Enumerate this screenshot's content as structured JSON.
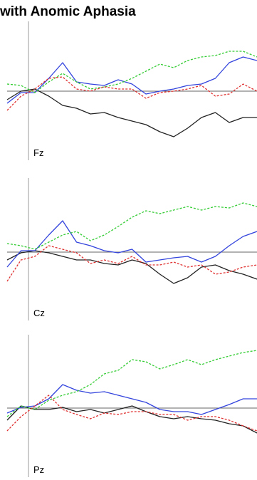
{
  "title": "with Anomic Aphasia",
  "chart_data": [
    {
      "type": "line",
      "label": "Fz",
      "ylim": [
        -97,
        98
      ],
      "series": [
        {
          "color": "#222222",
          "dashed": false,
          "values": [
            -12,
            0,
            3,
            -7,
            -20,
            -24,
            -32,
            -30,
            -37,
            -42,
            -47,
            -57,
            -64,
            -52,
            -37,
            -30,
            -44,
            -37,
            -37
          ]
        },
        {
          "color": "#3344dd",
          "dashed": false,
          "values": [
            -17,
            -2,
            -2,
            18,
            40,
            13,
            10,
            8,
            16,
            10,
            -4,
            0,
            3,
            8,
            10,
            18,
            40,
            48,
            43
          ]
        },
        {
          "color": "#33cc33",
          "dashed": true,
          "values": [
            10,
            8,
            -2,
            13,
            25,
            13,
            3,
            6,
            10,
            18,
            28,
            38,
            33,
            43,
            48,
            50,
            56,
            56,
            48
          ]
        },
        {
          "color": "#e03030",
          "dashed": true,
          "values": [
            -27,
            -7,
            3,
            18,
            20,
            3,
            0,
            6,
            3,
            3,
            -10,
            -2,
            0,
            3,
            8,
            -7,
            -4,
            10,
            0
          ]
        }
      ]
    },
    {
      "type": "line",
      "label": "Cz",
      "ylim": [
        -96,
        104
      ],
      "series": [
        {
          "color": "#222222",
          "dashed": false,
          "values": [
            -11,
            -1,
            2,
            -1,
            -6,
            -11,
            -11,
            -16,
            -18,
            -11,
            -16,
            -31,
            -44,
            -36,
            -21,
            -18,
            -26,
            -31,
            -38
          ]
        },
        {
          "color": "#3344dd",
          "dashed": false,
          "values": [
            -21,
            2,
            2,
            24,
            44,
            14,
            9,
            2,
            -1,
            4,
            -14,
            -11,
            -8,
            -6,
            -14,
            -6,
            9,
            22,
            29
          ]
        },
        {
          "color": "#33cc33",
          "dashed": true,
          "values": [
            12,
            9,
            4,
            14,
            24,
            29,
            16,
            24,
            36,
            49,
            58,
            54,
            59,
            64,
            59,
            64,
            62,
            69,
            64
          ]
        },
        {
          "color": "#e03030",
          "dashed": true,
          "values": [
            -41,
            -11,
            -6,
            9,
            4,
            -1,
            -16,
            -11,
            -16,
            -6,
            -18,
            -18,
            -14,
            -21,
            -18,
            -31,
            -28,
            -21,
            -18
          ]
        }
      ]
    },
    {
      "type": "line",
      "label": "Pz",
      "ylim": [
        -97,
        103
      ],
      "series": [
        {
          "color": "#222222",
          "dashed": false,
          "values": [
            -17,
            3,
            -2,
            -2,
            1,
            -5,
            -2,
            -7,
            -2,
            3,
            -5,
            -12,
            -15,
            -12,
            -15,
            -17,
            -22,
            -25,
            -35
          ]
        },
        {
          "color": "#3344dd",
          "dashed": false,
          "values": [
            -7,
            1,
            3,
            13,
            33,
            25,
            21,
            23,
            18,
            13,
            8,
            -2,
            -5,
            -5,
            -9,
            -2,
            5,
            13,
            13
          ]
        },
        {
          "color": "#33cc33",
          "dashed": true,
          "values": [
            -12,
            3,
            -2,
            11,
            18,
            23,
            33,
            48,
            53,
            68,
            65,
            55,
            61,
            68,
            61,
            68,
            73,
            78,
            81
          ]
        },
        {
          "color": "#e03030",
          "dashed": true,
          "values": [
            -32,
            -12,
            3,
            18,
            -2,
            -9,
            -15,
            -7,
            -9,
            -5,
            -5,
            -9,
            -9,
            -17,
            -12,
            -12,
            -17,
            -25,
            -32
          ]
        }
      ]
    }
  ]
}
